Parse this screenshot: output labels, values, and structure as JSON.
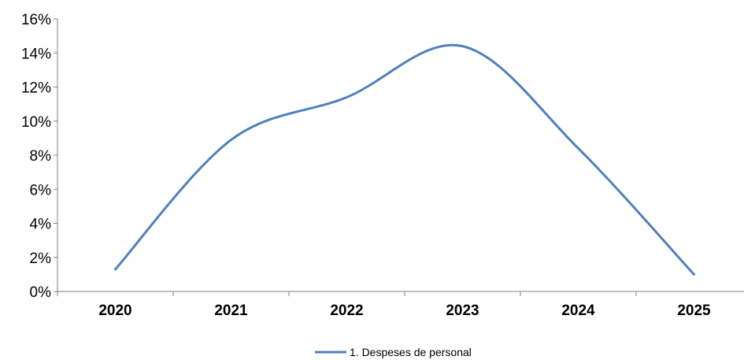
{
  "chart_data": {
    "type": "line",
    "categories": [
      "2020",
      "2021",
      "2022",
      "2023",
      "2024",
      "2025"
    ],
    "series": [
      {
        "name": "1. Despeses de personal",
        "values": [
          1.3,
          8.9,
          11.4,
          14.4,
          8.4,
          1.0
        ],
        "color": "#4F81BD"
      }
    ],
    "ylim": [
      0,
      16
    ],
    "yticks": [
      0,
      2,
      4,
      6,
      8,
      10,
      12,
      14,
      16
    ],
    "ytick_labels": [
      "0%",
      "2%",
      "4%",
      "6%",
      "8%",
      "10%",
      "12%",
      "14%",
      "16%"
    ],
    "smooth": true,
    "grid": false,
    "legend": "bottom"
  }
}
